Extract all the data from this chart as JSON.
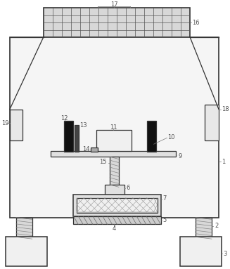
{
  "fig_width": 3.27,
  "fig_height": 3.83,
  "dpi": 100,
  "bg_color": "#ffffff",
  "line_color": "#333333",
  "lw": 0.9,
  "label_color": "#555555",
  "label_fontsize": 6.0
}
